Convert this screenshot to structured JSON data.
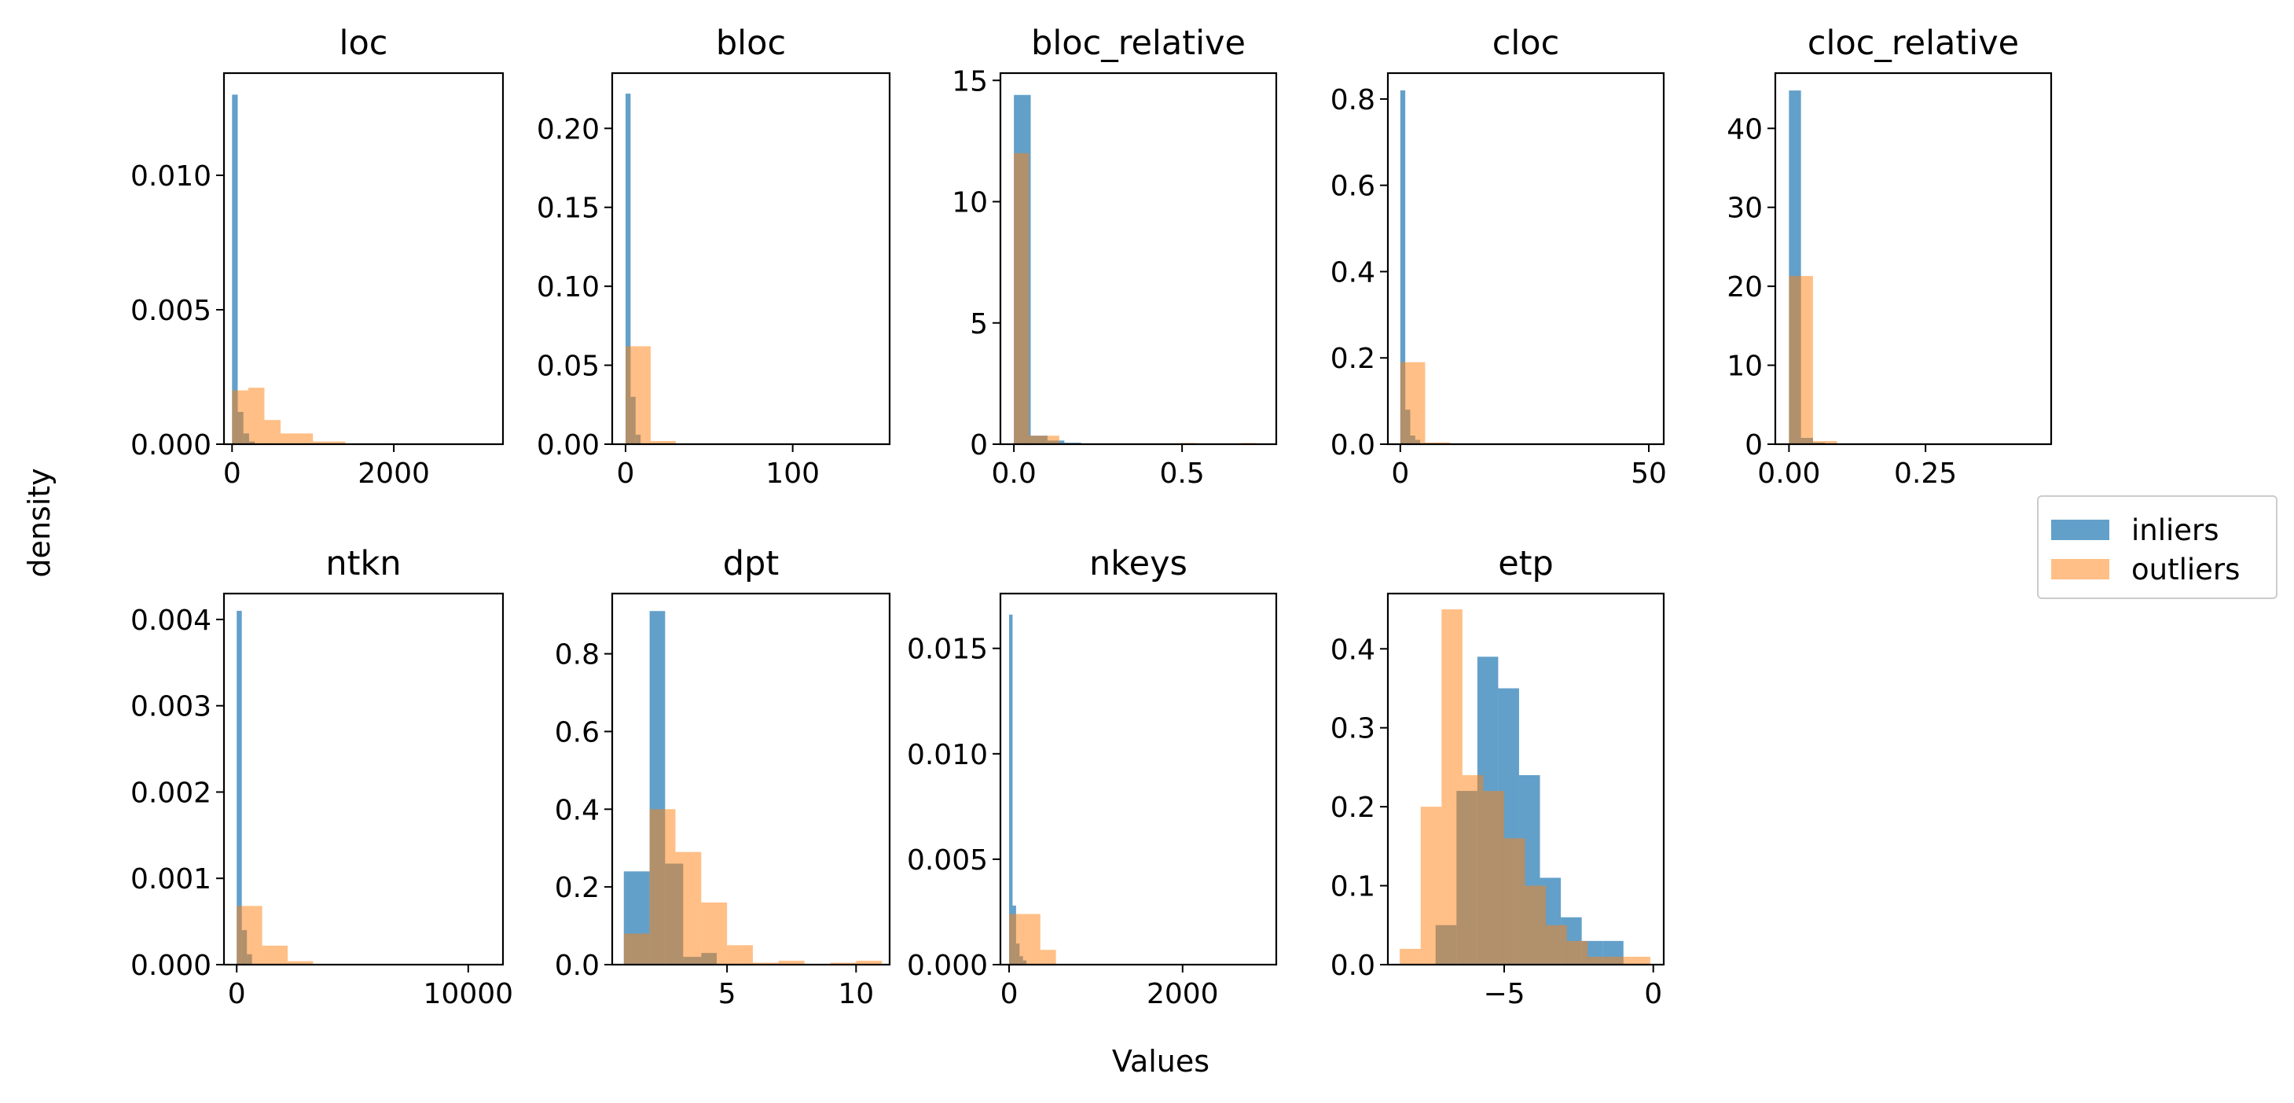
{
  "figure": {
    "ylabel": "density",
    "xlabel": "Values"
  },
  "legend": {
    "items": [
      {
        "label": "inliers",
        "color": "#1f77b4"
      },
      {
        "label": "outliers",
        "color": "#ff7f0e"
      }
    ]
  },
  "chart_data": [
    {
      "type": "bar",
      "title": "loc",
      "xlim": [
        -100,
        3350
      ],
      "ylim": [
        0,
        0.0138
      ],
      "xticks": [
        0,
        2000
      ],
      "yticks": [
        0.0,
        0.005,
        0.01
      ],
      "ytick_labels": [
        "0.000",
        "0.005",
        "0.010"
      ],
      "series": [
        {
          "name": "inliers",
          "color": "#1f77b4",
          "bins": [
            [
              0,
              70,
              0.013
            ],
            [
              70,
              140,
              0.0012
            ],
            [
              140,
              210,
              0.0004
            ],
            [
              210,
              280,
              0.0001
            ]
          ]
        },
        {
          "name": "outliers",
          "color": "#ff7f0e",
          "bins": [
            [
              0,
              200,
              0.002
            ],
            [
              200,
              400,
              0.0021
            ],
            [
              400,
              600,
              0.0009
            ],
            [
              600,
              1000,
              0.0004
            ],
            [
              1000,
              1400,
              0.0001
            ]
          ]
        }
      ]
    },
    {
      "type": "bar",
      "title": "bloc",
      "xlim": [
        -8,
        158
      ],
      "ylim": [
        0,
        0.235
      ],
      "xticks": [
        0,
        100
      ],
      "yticks": [
        0.0,
        0.05,
        0.1,
        0.15,
        0.2
      ],
      "ytick_labels": [
        "0.00",
        "0.05",
        "0.10",
        "0.15",
        "0.20"
      ],
      "series": [
        {
          "name": "inliers",
          "color": "#1f77b4",
          "bins": [
            [
              0,
              3,
              0.222
            ],
            [
              3,
              6,
              0.03
            ],
            [
              6,
              9,
              0.006
            ]
          ]
        },
        {
          "name": "outliers",
          "color": "#ff7f0e",
          "bins": [
            [
              0,
              15,
              0.062
            ],
            [
              15,
              30,
              0.002
            ]
          ]
        }
      ]
    },
    {
      "type": "bar",
      "title": "bloc_relative",
      "xlim": [
        -0.04,
        0.78
      ],
      "ylim": [
        0,
        15.3
      ],
      "xticks": [
        0.0,
        0.5
      ],
      "xtick_labels": [
        "0.0",
        "0.5"
      ],
      "yticks": [
        0,
        5,
        10,
        15
      ],
      "series": [
        {
          "name": "inliers",
          "color": "#1f77b4",
          "bins": [
            [
              0,
              0.05,
              14.4
            ],
            [
              0.05,
              0.1,
              0.35
            ],
            [
              0.1,
              0.15,
              0.15
            ],
            [
              0.15,
              0.2,
              0.06
            ]
          ]
        },
        {
          "name": "outliers",
          "color": "#ff7f0e",
          "bins": [
            [
              0,
              0.045,
              12.0
            ],
            [
              0.045,
              0.09,
              0.35
            ],
            [
              0.09,
              0.135,
              0.35
            ],
            [
              0.135,
              0.18,
              0.02
            ],
            [
              0.18,
              0.225,
              0.02
            ],
            [
              0.27,
              0.315,
              0.03
            ],
            [
              0.495,
              0.54,
              0.05
            ],
            [
              0.675,
              0.72,
              0.05
            ]
          ]
        }
      ]
    },
    {
      "type": "bar",
      "title": "cloc",
      "xlim": [
        -2.5,
        53
      ],
      "ylim": [
        0,
        0.86
      ],
      "xticks": [
        0,
        50
      ],
      "yticks": [
        0.0,
        0.2,
        0.4,
        0.6,
        0.8
      ],
      "ytick_labels": [
        "0.0",
        "0.2",
        "0.4",
        "0.6",
        "0.8"
      ],
      "series": [
        {
          "name": "inliers",
          "color": "#1f77b4",
          "bins": [
            [
              0,
              1,
              0.82
            ],
            [
              1,
              2,
              0.08
            ],
            [
              2,
              3,
              0.02
            ],
            [
              3,
              4,
              0.01
            ]
          ]
        },
        {
          "name": "outliers",
          "color": "#ff7f0e",
          "bins": [
            [
              0,
              5,
              0.19
            ],
            [
              5,
              10,
              0.004
            ]
          ]
        }
      ]
    },
    {
      "type": "bar",
      "title": "cloc_relative",
      "xlim": [
        -0.025,
        0.48
      ],
      "ylim": [
        0,
        47
      ],
      "xticks": [
        0.0,
        0.25
      ],
      "xtick_labels": [
        "0.00",
        "0.25"
      ],
      "yticks": [
        0,
        10,
        20,
        30,
        40
      ],
      "series": [
        {
          "name": "inliers",
          "color": "#1f77b4",
          "bins": [
            [
              0,
              0.022,
              44.8
            ],
            [
              0.022,
              0.044,
              0.8
            ],
            [
              0.044,
              0.066,
              0.2
            ]
          ]
        },
        {
          "name": "outliers",
          "color": "#ff7f0e",
          "bins": [
            [
              0,
              0.044,
              21.3
            ],
            [
              0.044,
              0.088,
              0.4
            ]
          ]
        }
      ]
    },
    {
      "type": "bar",
      "title": "ntkn",
      "xlim": [
        -550,
        11500
      ],
      "ylim": [
        0,
        0.0043
      ],
      "xticks": [
        0,
        10000
      ],
      "yticks": [
        0.0,
        0.001,
        0.002,
        0.003,
        0.004
      ],
      "ytick_labels": [
        "0.000",
        "0.001",
        "0.002",
        "0.003",
        "0.004"
      ],
      "series": [
        {
          "name": "inliers",
          "color": "#1f77b4",
          "bins": [
            [
              0,
              220,
              0.0041
            ],
            [
              220,
              440,
              0.0004
            ],
            [
              440,
              660,
              0.00012
            ]
          ]
        },
        {
          "name": "outliers",
          "color": "#ff7f0e",
          "bins": [
            [
              0,
              1100,
              0.00068
            ],
            [
              1100,
              2200,
              0.00022
            ],
            [
              2200,
              3300,
              4e-05
            ]
          ]
        }
      ]
    },
    {
      "type": "bar",
      "title": "dpt",
      "xlim": [
        0.55,
        11.3
      ],
      "ylim": [
        0,
        0.955
      ],
      "xticks": [
        5,
        10
      ],
      "yticks": [
        0.0,
        0.2,
        0.4,
        0.6,
        0.8
      ],
      "ytick_labels": [
        "0.0",
        "0.2",
        "0.4",
        "0.6",
        "0.8"
      ],
      "series": [
        {
          "name": "inliers",
          "color": "#1f77b4",
          "bins": [
            [
              1,
              2,
              0.24
            ],
            [
              2,
              2.6,
              0.91
            ],
            [
              2.6,
              3.3,
              0.26
            ],
            [
              3.3,
              4,
              0.02
            ],
            [
              4,
              4.6,
              0.03
            ]
          ]
        },
        {
          "name": "outliers",
          "color": "#ff7f0e",
          "bins": [
            [
              1,
              2,
              0.08
            ],
            [
              2,
              3,
              0.4
            ],
            [
              3,
              4,
              0.29
            ],
            [
              4,
              5,
              0.16
            ],
            [
              5,
              6,
              0.05
            ],
            [
              6,
              7,
              0.005
            ],
            [
              7,
              8,
              0.01
            ],
            [
              9,
              10,
              0.005
            ],
            [
              10,
              11,
              0.01
            ]
          ]
        }
      ]
    },
    {
      "type": "bar",
      "title": "nkeys",
      "xlim": [
        -100,
        3080
      ],
      "ylim": [
        0,
        0.0176
      ],
      "xticks": [
        0,
        2000
      ],
      "yticks": [
        0.0,
        0.005,
        0.01,
        0.015
      ],
      "ytick_labels": [
        "0.000",
        "0.005",
        "0.010",
        "0.015"
      ],
      "series": [
        {
          "name": "inliers",
          "color": "#1f77b4",
          "bins": [
            [
              0,
              40,
              0.0166
            ],
            [
              40,
              80,
              0.0028
            ],
            [
              80,
              120,
              0.001
            ],
            [
              120,
              160,
              0.0004
            ],
            [
              160,
              200,
              0.0002
            ]
          ]
        },
        {
          "name": "outliers",
          "color": "#ff7f0e",
          "bins": [
            [
              0,
              180,
              0.0024
            ],
            [
              180,
              360,
              0.0024
            ],
            [
              360,
              540,
              0.0007
            ]
          ]
        }
      ]
    },
    {
      "type": "bar",
      "title": "etp",
      "xlim": [
        -8.9,
        0.35
      ],
      "ylim": [
        0,
        0.47
      ],
      "xticks": [
        -5,
        0
      ],
      "xtick_labels": [
        "−5",
        "0"
      ],
      "yticks": [
        0.0,
        0.1,
        0.2,
        0.3,
        0.4
      ],
      "ytick_labels": [
        "0.0",
        "0.1",
        "0.2",
        "0.3",
        "0.4"
      ],
      "series": [
        {
          "name": "inliers",
          "color": "#1f77b4",
          "bins": [
            [
              -7.3,
              -6.6,
              0.05
            ],
            [
              -6.6,
              -5.9,
              0.22
            ],
            [
              -5.9,
              -5.2,
              0.39
            ],
            [
              -5.2,
              -4.5,
              0.35
            ],
            [
              -4.5,
              -3.8,
              0.24
            ],
            [
              -3.8,
              -3.1,
              0.11
            ],
            [
              -3.1,
              -2.4,
              0.06
            ],
            [
              -2.4,
              -1.7,
              0.03
            ],
            [
              -1.7,
              -1.0,
              0.03
            ]
          ]
        },
        {
          "name": "outliers",
          "color": "#ff7f0e",
          "bins": [
            [
              -8.5,
              -7.8,
              0.02
            ],
            [
              -7.8,
              -7.1,
              0.2
            ],
            [
              -7.1,
              -6.4,
              0.45
            ],
            [
              -6.4,
              -5.7,
              0.24
            ],
            [
              -5.7,
              -5.0,
              0.22
            ],
            [
              -5.0,
              -4.3,
              0.16
            ],
            [
              -4.3,
              -3.6,
              0.1
            ],
            [
              -3.6,
              -2.9,
              0.05
            ],
            [
              -2.9,
              -2.2,
              0.03
            ],
            [
              -2.2,
              -1.5,
              0.01
            ],
            [
              -1.5,
              -0.8,
              0.01
            ],
            [
              -0.8,
              -0.1,
              0.01
            ]
          ]
        }
      ]
    }
  ]
}
